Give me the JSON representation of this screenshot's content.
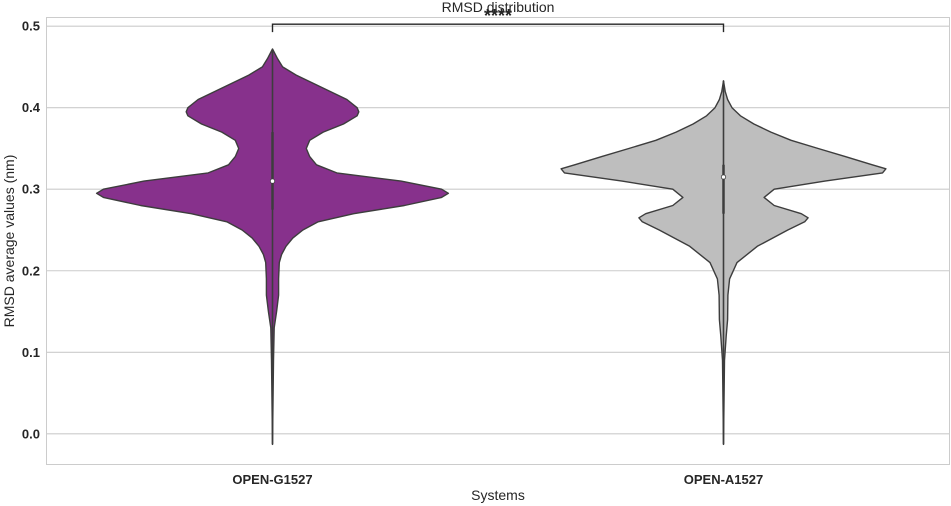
{
  "chart_data": {
    "type": "violin",
    "title": "RMSD distribution",
    "xlabel": "Systems",
    "ylabel": "RMSD average values (nm)",
    "ylim": [
      -0.037,
      0.51
    ],
    "yticks": [
      0.0,
      0.1,
      0.2,
      0.3,
      0.4,
      0.5
    ],
    "ytick_labels": [
      "0.0",
      "0.1",
      "0.2",
      "0.3",
      "0.4",
      "0.5"
    ],
    "grid": true,
    "categories": [
      "OPEN-G1527",
      "OPEN-A1527"
    ],
    "series": [
      {
        "category": "OPEN-G1527",
        "color": "#87318c",
        "range": [
          -0.013,
          0.472
        ],
        "median": 0.31,
        "iqr": [
          0.275,
          0.37
        ],
        "whiskers": [
          0.155,
          0.44
        ],
        "profile": [
          [
            -0.013,
            0.0
          ],
          [
            0.09,
            0.003
          ],
          [
            0.13,
            0.005
          ],
          [
            0.15,
            0.012
          ],
          [
            0.17,
            0.018
          ],
          [
            0.19,
            0.018
          ],
          [
            0.21,
            0.02
          ],
          [
            0.22,
            0.027
          ],
          [
            0.23,
            0.04
          ],
          [
            0.24,
            0.06
          ],
          [
            0.25,
            0.09
          ],
          [
            0.26,
            0.135
          ],
          [
            0.27,
            0.24
          ],
          [
            0.28,
            0.39
          ],
          [
            0.29,
            0.5
          ],
          [
            0.295,
            0.52
          ],
          [
            0.3,
            0.5
          ],
          [
            0.31,
            0.38
          ],
          [
            0.32,
            0.19
          ],
          [
            0.33,
            0.13
          ],
          [
            0.34,
            0.11
          ],
          [
            0.35,
            0.1
          ],
          [
            0.36,
            0.11
          ],
          [
            0.37,
            0.15
          ],
          [
            0.38,
            0.21
          ],
          [
            0.39,
            0.25
          ],
          [
            0.395,
            0.255
          ],
          [
            0.4,
            0.25
          ],
          [
            0.41,
            0.22
          ],
          [
            0.42,
            0.17
          ],
          [
            0.43,
            0.12
          ],
          [
            0.44,
            0.07
          ],
          [
            0.45,
            0.03
          ],
          [
            0.46,
            0.015
          ],
          [
            0.472,
            0.0
          ]
        ]
      },
      {
        "category": "OPEN-A1527",
        "color": "#bebebe",
        "range": [
          -0.013,
          0.433
        ],
        "median": 0.315,
        "iqr": [
          0.27,
          0.33
        ],
        "whiskers": [
          0.18,
          0.41
        ],
        "profile": [
          [
            -0.013,
            0.0
          ],
          [
            0.09,
            0.003
          ],
          [
            0.12,
            0.008
          ],
          [
            0.14,
            0.012
          ],
          [
            0.17,
            0.013
          ],
          [
            0.19,
            0.018
          ],
          [
            0.21,
            0.04
          ],
          [
            0.23,
            0.1
          ],
          [
            0.25,
            0.19
          ],
          [
            0.26,
            0.24
          ],
          [
            0.265,
            0.25
          ],
          [
            0.27,
            0.23
          ],
          [
            0.28,
            0.15
          ],
          [
            0.29,
            0.12
          ],
          [
            0.3,
            0.15
          ],
          [
            0.31,
            0.3
          ],
          [
            0.32,
            0.47
          ],
          [
            0.325,
            0.48
          ],
          [
            0.33,
            0.44
          ],
          [
            0.34,
            0.36
          ],
          [
            0.35,
            0.28
          ],
          [
            0.36,
            0.2
          ],
          [
            0.37,
            0.14
          ],
          [
            0.38,
            0.09
          ],
          [
            0.39,
            0.05
          ],
          [
            0.4,
            0.025
          ],
          [
            0.41,
            0.012
          ],
          [
            0.42,
            0.005
          ],
          [
            0.433,
            0.0
          ]
        ]
      }
    ],
    "annotation": {
      "text": "****",
      "between": [
        "OPEN-G1527",
        "OPEN-A1527"
      ],
      "y": 0.5
    }
  }
}
